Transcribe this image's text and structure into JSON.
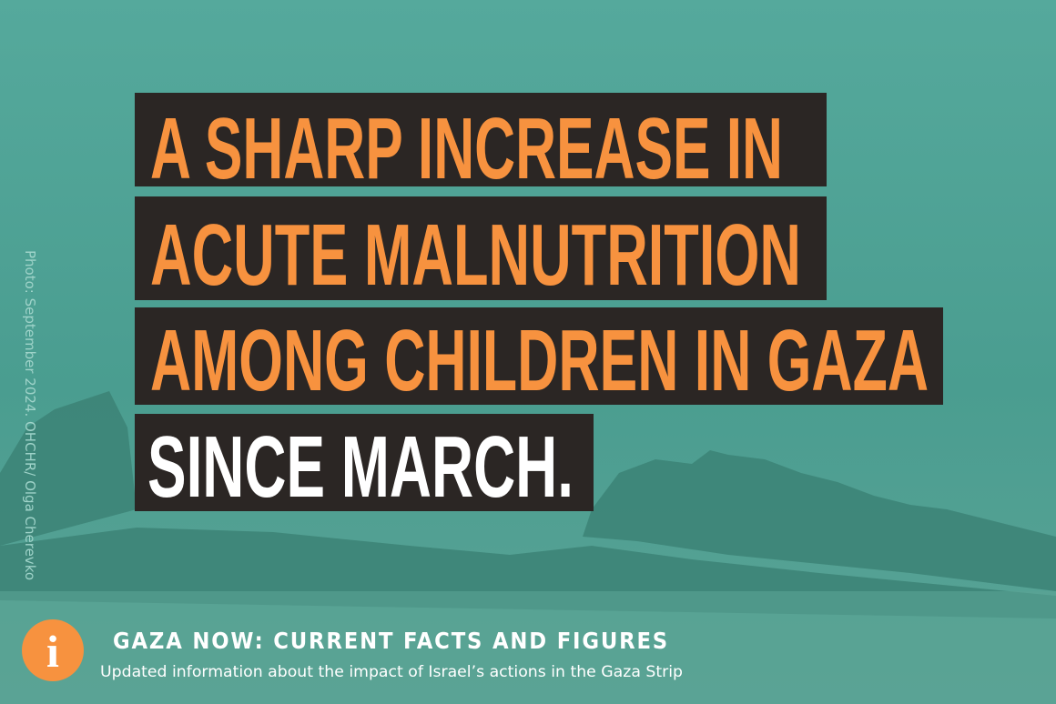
{
  "headline": {
    "lines": [
      "A SHARP INCREASE IN",
      "ACUTE MALNUTRITION",
      "AMONG CHILDREN IN GAZA",
      "SINCE MARCH."
    ]
  },
  "credit": "Photo: September 2024. OHCHR/ Olga Cherevko",
  "footer": {
    "icon": "i",
    "title": "GAZA NOW: CURRENT FACTS AND FIGURES",
    "subtitle": "Updated information about the impact of Israel’s actions in the Gaza Strip"
  }
}
